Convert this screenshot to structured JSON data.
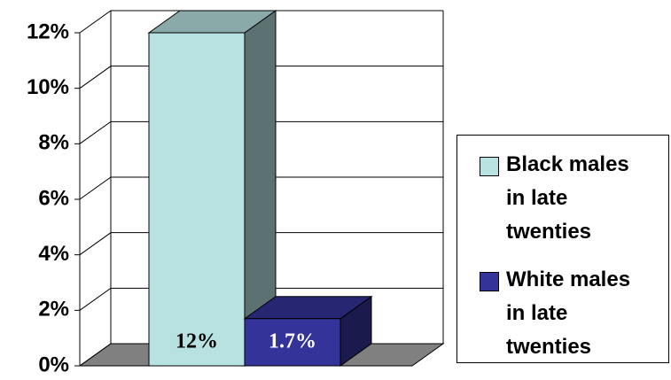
{
  "chart_data": {
    "type": "bar3d",
    "series": [
      {
        "name": "Black males in late twenties",
        "color": "#b8e2e2",
        "values": [
          12
        ],
        "value_labels": [
          "12%"
        ]
      },
      {
        "name": "White males in late twenties",
        "color": "#333399",
        "values": [
          1.7
        ],
        "value_labels": [
          "1.7%"
        ]
      }
    ],
    "ylim": [
      0,
      12
    ],
    "yticks": [
      {
        "value": 0,
        "label": "0%"
      },
      {
        "value": 2,
        "label": "2%"
      },
      {
        "value": 4,
        "label": "4%"
      },
      {
        "value": 6,
        "label": "6%"
      },
      {
        "value": 8,
        "label": "8%"
      },
      {
        "value": 10,
        "label": "10%"
      },
      {
        "value": 12,
        "label": "12%"
      }
    ],
    "grid": true,
    "legend": "right"
  }
}
